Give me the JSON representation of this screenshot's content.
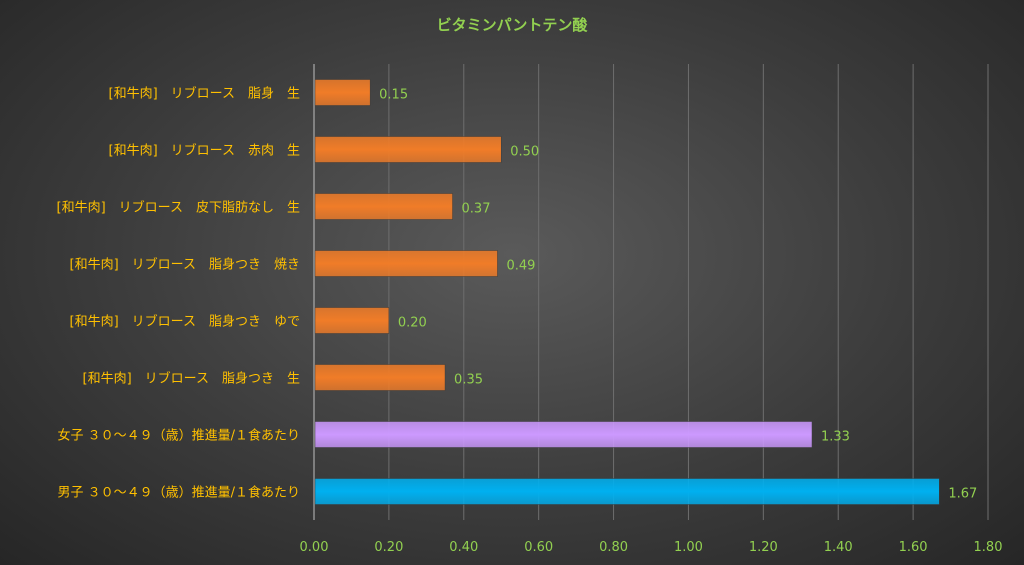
{
  "chart_data": {
    "type": "bar",
    "orientation": "horizontal",
    "title": "ビタミンパントテン酸",
    "categories": [
      "[和牛肉]　リブロース　脂身　生",
      "[和牛肉]　リブロース　赤肉　生",
      "[和牛肉]　リブロース　皮下脂肪なし　生",
      "[和牛肉]　リブロース　脂身つき　焼き",
      "[和牛肉]　リブロース　脂身つき　ゆで",
      "[和牛肉]　リブロース　脂身つき　生",
      "女子 ３０～４９（歳）推進量/１食あたり",
      "男子 ３０～４９（歳）推進量/１食あたり"
    ],
    "values": [
      0.15,
      0.5,
      0.37,
      0.49,
      0.2,
      0.35,
      1.33,
      1.67
    ],
    "value_labels": [
      "0.15",
      "0.50",
      "0.37",
      "0.49",
      "0.20",
      "0.35",
      "1.33",
      "1.67"
    ],
    "bar_colors": [
      "#f07c28",
      "#f07c28",
      "#f07c28",
      "#f07c28",
      "#f07c28",
      "#f07c28",
      "#cc99ff",
      "#00b0f0"
    ],
    "xlim": [
      0,
      1.8
    ],
    "xticks": [
      "0.00",
      "0.20",
      "0.40",
      "0.60",
      "0.80",
      "1.00",
      "1.20",
      "1.40",
      "1.60",
      "1.80"
    ],
    "xtick_values": [
      0,
      0.2,
      0.4,
      0.6,
      0.8,
      1.0,
      1.2,
      1.4,
      1.6,
      1.8
    ],
    "grid": true,
    "legend": "none",
    "colors": {
      "title": "#92d050",
      "category_label": "#ffc000",
      "tick_label": "#92d050",
      "data_label": "#92d050"
    }
  }
}
